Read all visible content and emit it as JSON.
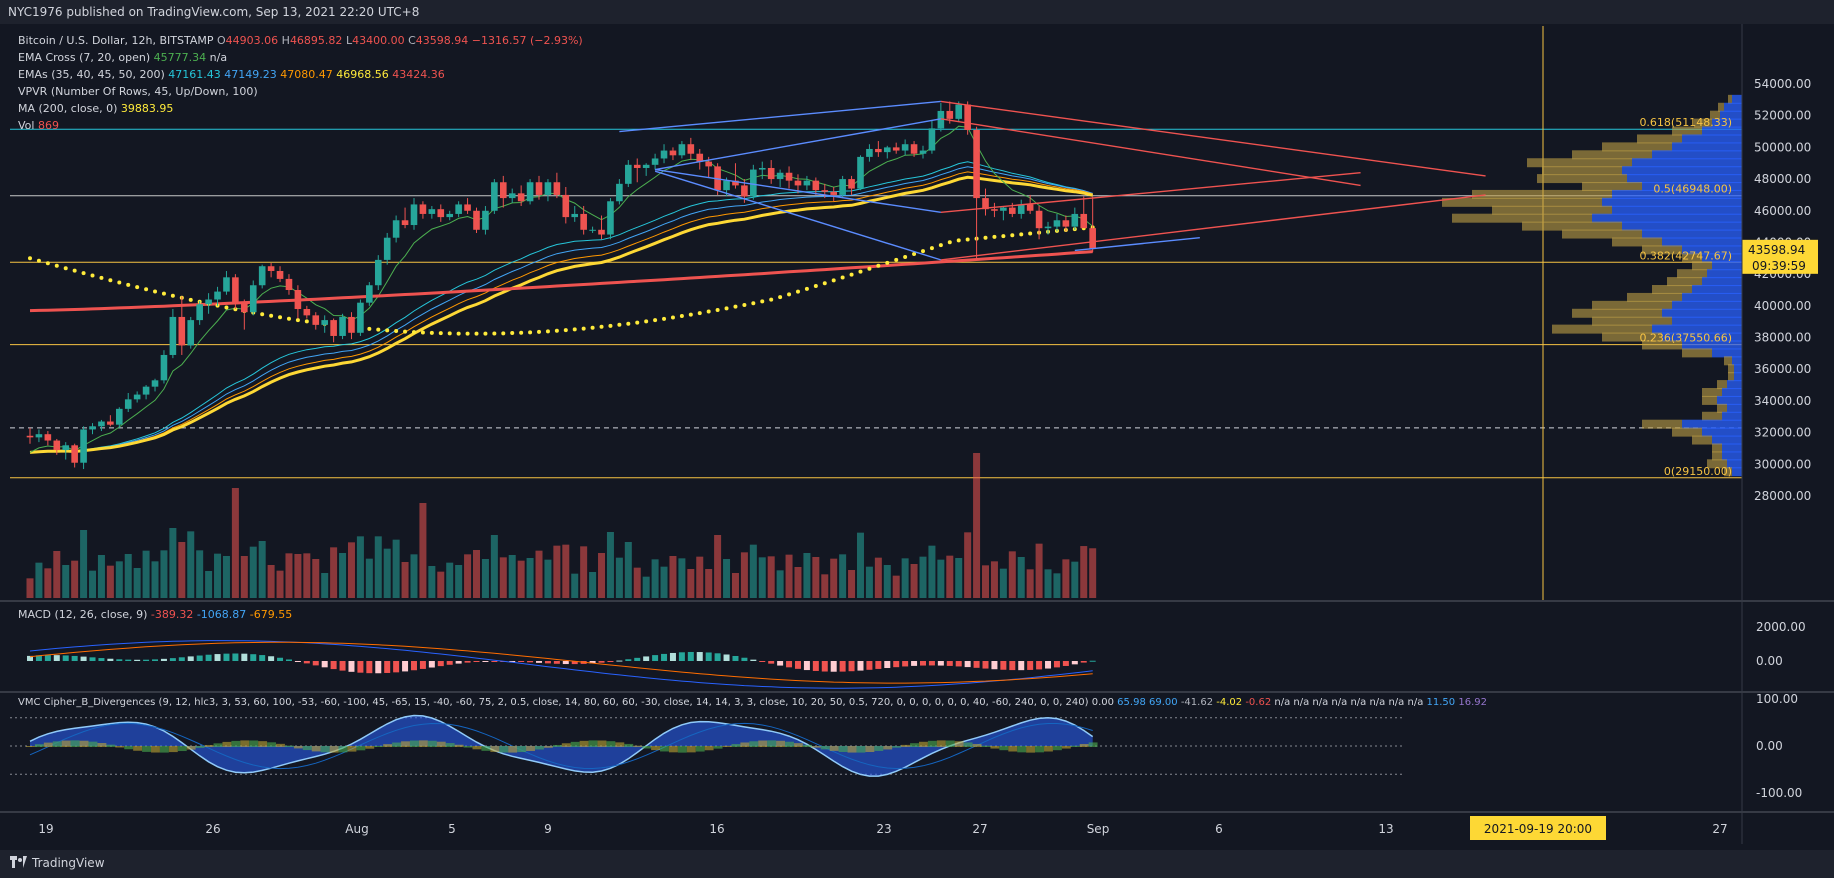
{
  "header": {
    "publisher": "NYC1976 published on TradingView.com, Sep 13, 2021 22:20 UTC+8"
  },
  "legend": {
    "symbol": "Bitcoin / U.S. Dollar, 12h, BITSTAMP",
    "open_label": "O",
    "open": "44903.06",
    "high_label": "H",
    "high": "46895.82",
    "low_label": "L",
    "low": "43400.00",
    "close_label": "C",
    "close": "43598.94",
    "change": "−1316.57 (−2.93%)",
    "ema_cross_label": "EMA Cross (7, 20, open)",
    "ema_cross_value": "45777.34",
    "ema_cross_na": "n/a",
    "emas_label": "EMAs (35, 40, 45, 50, 200)",
    "ema35": "47161.43",
    "ema40": "47149.23",
    "ema45": "47080.47",
    "ema50": "46968.56",
    "ema200": "43424.36",
    "vpvr_label": "VPVR (Number Of Rows, 45, Up/Down, 100)",
    "ma_label": "MA (200, close, 0)",
    "ma_value": "39883.95",
    "vol_label": "Vol",
    "vol_value": "869"
  },
  "macd_legend": {
    "label": "MACD (12, 26, close, 9)",
    "hist": "-389.32",
    "macd": "-1068.87",
    "signal": "-679.55"
  },
  "wt_legend": {
    "label": "VMC Cipher_B_Divergences (9, 12, hlc3, 3, 53, 60, 100, -53, -60, -100, 45, -65, 15, -40, -60, 75, 2, 0.5, close, 14, 80, 60, 60, -30, close, 14, 14, 3, 3, close, 10, 20, 50, 0.5, 720, 0, 0, 0, 0, 0, 0, 40, -60, 240, 0, 0, 240) 0.00",
    "v1": "65.98",
    "v2": "69.00",
    "v3": "-41.62",
    "v4": "-4.02",
    "v5": "-0.62",
    "na_list": "n/a n/a n/a n/a n/a n/a n/a n/a",
    "v6": "11.50",
    "v7": "16.92"
  },
  "price_axis": {
    "ticks": [
      "54000.00",
      "52000.00",
      "50000.00",
      "48000.00",
      "46000.00",
      "44000.00",
      "42000.00",
      "40000.00",
      "38000.00",
      "36000.00",
      "34000.00",
      "32000.00",
      "30000.00",
      "28000.00"
    ],
    "last_price": "43598.94",
    "countdown": "09:39:59",
    "macd_ticks": [
      "2000.00",
      "0.00"
    ],
    "wt_ticks": [
      "100.00",
      "0.00",
      "-100.00"
    ]
  },
  "fib": {
    "f0618": "0.618(51148.33)",
    "f05": "0.5(46948.00)",
    "f0382": "0.382(42747.67)",
    "f0236": "0.236(37550.66)",
    "f0": "0(29150.00)"
  },
  "time_axis": {
    "labels": [
      "19",
      "26",
      "Aug",
      "5",
      "9",
      "16",
      "23",
      "27",
      "Sep",
      "6",
      "13",
      "27"
    ],
    "cursor_label": "2021-09-19  20:00"
  },
  "footer": {
    "brand": "TradingView"
  },
  "colors": {
    "bg": "#131722",
    "up": "#26a69a",
    "down": "#ef5350",
    "ema_gold": "#fdd835",
    "ma200": "#ef5350",
    "fib": "#f6c343",
    "vpvr_up": "#2962ff",
    "vpvr_down": "#bfa046"
  },
  "chart_data": {
    "type": "candlestick",
    "symbol": "BTC/USD",
    "interval": "12h",
    "x_range": [
      "2021-07-18",
      "2021-09-27"
    ],
    "ylim": [
      27000,
      55000
    ],
    "candles": [
      [
        31800,
        32300,
        31300,
        31700
      ],
      [
        31700,
        32200,
        31400,
        31900
      ],
      [
        31900,
        32100,
        31200,
        31500
      ],
      [
        31500,
        31600,
        30600,
        30900
      ],
      [
        30900,
        31400,
        30300,
        31200
      ],
      [
        31200,
        31300,
        29800,
        30100
      ],
      [
        30100,
        32400,
        29700,
        32200
      ],
      [
        32200,
        32600,
        31900,
        32400
      ],
      [
        32400,
        32800,
        32100,
        32700
      ],
      [
        32700,
        33100,
        32400,
        32500
      ],
      [
        32500,
        33600,
        32300,
        33500
      ],
      [
        33500,
        34500,
        33300,
        34100
      ],
      [
        34100,
        34600,
        33900,
        34400
      ],
      [
        34400,
        35000,
        34100,
        34900
      ],
      [
        34900,
        35400,
        34600,
        35300
      ],
      [
        35300,
        37200,
        35100,
        36900
      ],
      [
        36900,
        39800,
        36700,
        39300
      ],
      [
        39300,
        40600,
        36900,
        37500
      ],
      [
        37500,
        39300,
        37300,
        39100
      ],
      [
        39100,
        40300,
        38800,
        40100
      ],
      [
        40100,
        40800,
        39500,
        40400
      ],
      [
        40400,
        41200,
        40000,
        40900
      ],
      [
        40900,
        42200,
        40700,
        41800
      ],
      [
        41800,
        42000,
        39800,
        40200
      ],
      [
        40200,
        40400,
        38500,
        39600
      ],
      [
        39600,
        41600,
        39400,
        41300
      ],
      [
        41300,
        42600,
        41100,
        42500
      ],
      [
        42500,
        42700,
        41800,
        42200
      ],
      [
        42200,
        42500,
        41500,
        41700
      ],
      [
        41700,
        42000,
        40700,
        41000
      ],
      [
        41000,
        41300,
        39200,
        39800
      ],
      [
        39800,
        40000,
        39200,
        39400
      ],
      [
        39400,
        39600,
        38500,
        38800
      ],
      [
        38800,
        39400,
        38300,
        39100
      ],
      [
        39100,
        39200,
        37700,
        38100
      ],
      [
        38100,
        39500,
        37900,
        39300
      ],
      [
        39300,
        39600,
        37900,
        38300
      ],
      [
        38300,
        40400,
        38100,
        40200
      ],
      [
        40200,
        41500,
        40000,
        41300
      ],
      [
        41300,
        43200,
        41000,
        42900
      ],
      [
        42900,
        44600,
        42600,
        44300
      ],
      [
        44300,
        45700,
        44000,
        45400
      ],
      [
        45400,
        46200,
        44900,
        45100
      ],
      [
        45100,
        46800,
        44800,
        46400
      ],
      [
        46400,
        46600,
        45500,
        45800
      ],
      [
        45800,
        46300,
        45500,
        46100
      ],
      [
        46100,
        46400,
        45300,
        45600
      ],
      [
        45600,
        46000,
        45400,
        45800
      ],
      [
        45800,
        46600,
        45600,
        46400
      ],
      [
        46400,
        46800,
        45800,
        46000
      ],
      [
        46000,
        46200,
        44600,
        44800
      ],
      [
        44800,
        46300,
        44500,
        46000
      ],
      [
        46000,
        48000,
        45800,
        47800
      ],
      [
        47800,
        48200,
        46200,
        46800
      ],
      [
        46800,
        47400,
        46500,
        47100
      ],
      [
        47100,
        47600,
        46300,
        46600
      ],
      [
        46600,
        48000,
        46400,
        47800
      ],
      [
        47800,
        48200,
        46700,
        47000
      ],
      [
        47000,
        48000,
        46600,
        47800
      ],
      [
        47800,
        48400,
        46800,
        47000
      ],
      [
        47000,
        47500,
        45200,
        45600
      ],
      [
        45600,
        46300,
        45300,
        45800
      ],
      [
        45800,
        46300,
        44500,
        44800
      ],
      [
        44800,
        45000,
        44600,
        44800
      ],
      [
        44800,
        45700,
        44200,
        44500
      ],
      [
        44500,
        46800,
        44200,
        46600
      ],
      [
        46600,
        48000,
        46400,
        47700
      ],
      [
        47700,
        49200,
        47500,
        48900
      ],
      [
        48900,
        49300,
        47800,
        48700
      ],
      [
        48700,
        49000,
        48200,
        48900
      ],
      [
        48900,
        49600,
        48600,
        49300
      ],
      [
        49300,
        50200,
        49000,
        49800
      ],
      [
        49800,
        50000,
        49200,
        49500
      ],
      [
        49500,
        50400,
        49300,
        50200
      ],
      [
        50200,
        50600,
        49200,
        49600
      ],
      [
        49600,
        49900,
        48600,
        49100
      ],
      [
        49100,
        49400,
        48100,
        48800
      ],
      [
        48800,
        49000,
        47000,
        47300
      ],
      [
        47300,
        48100,
        46900,
        47900
      ],
      [
        47900,
        49000,
        47400,
        47600
      ],
      [
        47600,
        48000,
        46500,
        46900
      ],
      [
        46900,
        48900,
        46700,
        48600
      ],
      [
        48600,
        49100,
        48000,
        48700
      ],
      [
        48700,
        49200,
        47700,
        48000
      ],
      [
        48000,
        48600,
        47500,
        48400
      ],
      [
        48400,
        48800,
        47400,
        47900
      ],
      [
        47900,
        48300,
        47100,
        47600
      ],
      [
        47600,
        48200,
        47300,
        47900
      ],
      [
        47900,
        48100,
        47000,
        47300
      ],
      [
        47300,
        47700,
        46800,
        47200
      ],
      [
        47200,
        47500,
        46600,
        47000
      ],
      [
        47000,
        48200,
        46800,
        48000
      ],
      [
        48000,
        48200,
        47000,
        47400
      ],
      [
        47400,
        49500,
        47300,
        49400
      ],
      [
        49400,
        50200,
        49100,
        49900
      ],
      [
        49900,
        50400,
        49400,
        49700
      ],
      [
        49700,
        50100,
        49300,
        50000
      ],
      [
        50000,
        50300,
        49600,
        49800
      ],
      [
        49800,
        50500,
        49500,
        50200
      ],
      [
        50200,
        50400,
        49400,
        49600
      ],
      [
        49600,
        50100,
        49300,
        49800
      ],
      [
        49800,
        51700,
        49600,
        51200
      ],
      [
        51200,
        52800,
        51000,
        52300
      ],
      [
        52300,
        52900,
        51500,
        51800
      ],
      [
        51800,
        52900,
        51600,
        52700
      ],
      [
        52700,
        52900,
        50800,
        51100
      ],
      [
        51100,
        51300,
        42900,
        46800
      ],
      [
        46800,
        47400,
        45700,
        46100
      ],
      [
        46100,
        46500,
        45600,
        46000
      ],
      [
        46000,
        46300,
        45400,
        46200
      ],
      [
        46200,
        46500,
        45600,
        45800
      ],
      [
        45800,
        46700,
        45500,
        46400
      ],
      [
        46400,
        47000,
        45800,
        46000
      ],
      [
        46000,
        46300,
        44200,
        44900
      ],
      [
        44900,
        45300,
        44500,
        45000
      ],
      [
        45000,
        45800,
        44700,
        45400
      ],
      [
        45400,
        45700,
        44700,
        45000
      ],
      [
        45000,
        46200,
        44800,
        45800
      ],
      [
        45800,
        46900,
        45100,
        44903
      ],
      [
        44903,
        46895,
        43400,
        43599
      ]
    ],
    "ma200_level": 39883.95,
    "ema50_last": 46968.56,
    "ema200_last": 43424.36,
    "fib_levels": [
      {
        "ratio": 0.618,
        "price": 51148.33
      },
      {
        "ratio": 0.5,
        "price": 46948.0
      },
      {
        "ratio": 0.382,
        "price": 42747.67
      },
      {
        "ratio": 0.236,
        "price": 37550.66
      },
      {
        "ratio": 0,
        "price": 29150.0
      }
    ],
    "macd": {
      "hist": -389.32,
      "macd": -1068.87,
      "signal": -679.55,
      "ylim": [
        -1500,
        2600
      ]
    },
    "wavetrend": {
      "ylim": [
        -110,
        110
      ]
    }
  }
}
